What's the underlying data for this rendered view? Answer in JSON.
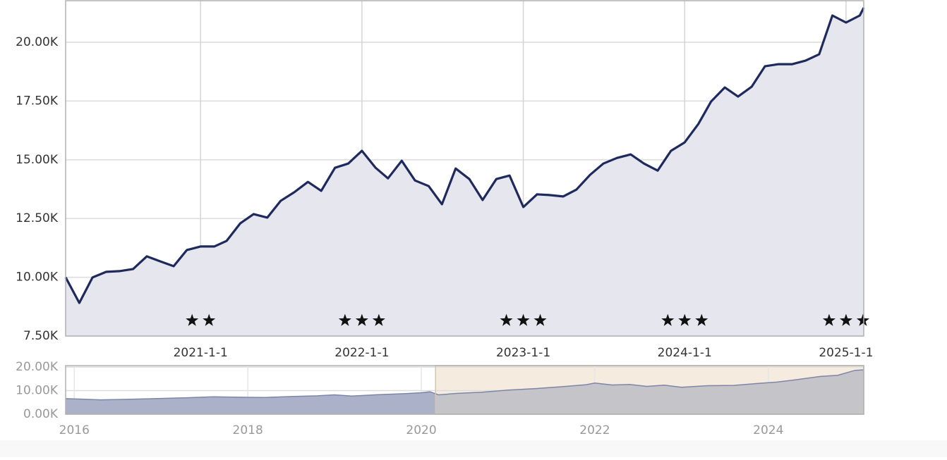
{
  "chart_data": [
    {
      "type": "area",
      "x": [
        "2020-03-01",
        "2020-04-01",
        "2020-05-01",
        "2020-06-01",
        "2020-07-01",
        "2020-08-01",
        "2020-09-01",
        "2020-10-01",
        "2020-11-01",
        "2020-12-01",
        "2021-01-01",
        "2021-02-01",
        "2021-03-01",
        "2021-04-01",
        "2021-05-01",
        "2021-06-01",
        "2021-07-01",
        "2021-08-01",
        "2021-09-01",
        "2021-10-01",
        "2021-11-01",
        "2021-12-01",
        "2022-01-01",
        "2022-02-01",
        "2022-03-01",
        "2022-04-01",
        "2022-05-01",
        "2022-06-01",
        "2022-07-01",
        "2022-08-01",
        "2022-09-01",
        "2022-10-01",
        "2022-11-01",
        "2022-12-01",
        "2023-01-01",
        "2023-02-01",
        "2023-03-01",
        "2023-04-01",
        "2023-05-01",
        "2023-06-01",
        "2023-07-01",
        "2023-08-01",
        "2023-09-01",
        "2023-10-01",
        "2023-11-01",
        "2023-12-01",
        "2024-01-01",
        "2024-02-01",
        "2024-03-01",
        "2024-04-01",
        "2024-05-01",
        "2024-06-01",
        "2024-07-01",
        "2024-08-01",
        "2024-09-01",
        "2024-10-01",
        "2024-11-01",
        "2024-12-01",
        "2025-01-01",
        "2025-02-01",
        "2025-02-10"
      ],
      "series": [
        {
          "color": "#1f2a5c",
          "fill": "#e6e7ee",
          "values": [
            10000,
            8910,
            9990,
            10230,
            10260,
            10350,
            10890,
            10680,
            10470,
            11160,
            11310,
            11310,
            11550,
            12300,
            12690,
            12540,
            13250,
            13620,
            14060,
            13680,
            14660,
            14840,
            15380,
            14660,
            14210,
            14960,
            14120,
            13880,
            13110,
            14630,
            14180,
            13290,
            14180,
            14330,
            12990,
            13530,
            13500,
            13440,
            13730,
            14360,
            14840,
            15080,
            15230,
            14840,
            14540,
            15380,
            15740,
            16520,
            17480,
            18080,
            17690,
            18110,
            18980,
            19070,
            19070,
            19220,
            19490,
            21140,
            20840,
            21140,
            21470
          ]
        }
      ],
      "xlim": [
        "2020-03-01",
        "2025-02-10"
      ],
      "xticks": [
        "2021-1-1",
        "2022-1-1",
        "2023-1-1",
        "2024-1-1",
        "2025-1-1"
      ],
      "ylim": [
        7500,
        21770
      ],
      "yticks": [
        {
          "value": 7500,
          "label": "7.50K"
        },
        {
          "value": 10000,
          "label": "10.00K"
        },
        {
          "value": 12500,
          "label": "12.50K"
        },
        {
          "value": 15000,
          "label": "15.00K"
        },
        {
          "value": 17500,
          "label": "17.50K"
        },
        {
          "value": 20000,
          "label": "20.00K"
        }
      ],
      "grid": true,
      "star_ratings": [
        2,
        3,
        3,
        3,
        3
      ]
    },
    {
      "type": "area",
      "x": [
        2015.9,
        2016.0,
        2016.3,
        2016.6,
        2017.0,
        2017.3,
        2017.6,
        2017.9,
        2018.2,
        2018.5,
        2018.8,
        2019.0,
        2019.2,
        2019.5,
        2019.8,
        2020.0,
        2020.1,
        2020.2,
        2020.4,
        2020.7,
        2021.0,
        2021.3,
        2021.6,
        2021.9,
        2022.0,
        2022.2,
        2022.4,
        2022.6,
        2022.8,
        2023.0,
        2023.3,
        2023.6,
        2023.9,
        2024.1,
        2024.3,
        2024.6,
        2024.8,
        2025.0,
        2025.1
      ],
      "series": [
        {
          "color": "#7d86a8",
          "fill": "#aab1c9",
          "values": [
            6600,
            6500,
            6100,
            6300,
            6700,
            7000,
            7400,
            7200,
            7100,
            7500,
            7800,
            8200,
            7700,
            8300,
            8700,
            9100,
            9500,
            8200,
            8800,
            9300,
            10200,
            10800,
            11600,
            12500,
            13200,
            12400,
            12600,
            11800,
            12300,
            11400,
            12100,
            12200,
            13100,
            13600,
            14500,
            16000,
            16500,
            18600,
            18800
          ]
        }
      ],
      "xlim": [
        2015.9,
        2025.1
      ],
      "xticks": [
        2016,
        2018,
        2020,
        2022,
        2024
      ],
      "ylim": [
        0,
        20600
      ],
      "yticks": [
        {
          "value": 0,
          "label": "0.00K"
        },
        {
          "value": 10000,
          "label": "10.00K"
        },
        {
          "value": 20000,
          "label": "20.00K"
        }
      ],
      "grid": true,
      "selection_color": "#f5ecdf",
      "selection_fill": "#c5c4c8",
      "selection_border": "#d6c6a6"
    }
  ]
}
